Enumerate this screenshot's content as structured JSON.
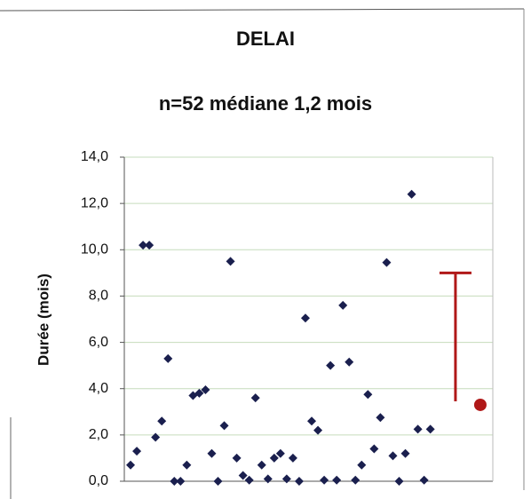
{
  "chart_data": {
    "type": "scatter",
    "title": "DELAI",
    "subtitle": "n=52  médiane 1,2 mois",
    "y_label": "Durée (mois)",
    "color": "#1a1f4e",
    "x": [
      1,
      2,
      3,
      4,
      5,
      6,
      7,
      8,
      9,
      10,
      11,
      12,
      13,
      14,
      15,
      16,
      17,
      18,
      19,
      20,
      21,
      22,
      23,
      24,
      25,
      26,
      27,
      28,
      29,
      30,
      31,
      32,
      33,
      34,
      35,
      36,
      37,
      38,
      39,
      40,
      41,
      42,
      43,
      44,
      45,
      46,
      47,
      48,
      49
    ],
    "values": [
      0.7,
      1.3,
      10.2,
      10.2,
      1.9,
      2.6,
      5.3,
      0,
      0,
      0.7,
      3.7,
      3.8,
      3.95,
      1.2,
      0,
      2.4,
      9.5,
      1.0,
      0.25,
      0.05,
      3.6,
      0.7,
      0.1,
      1.0,
      1.2,
      0.1,
      1.0,
      0,
      7.05,
      2.6,
      2.2,
      0.05,
      5.0,
      0.05,
      7.6,
      5.15,
      0.05,
      0.7,
      3.75,
      1.4,
      2.75,
      9.45,
      1.1,
      0,
      1.2,
      12.4,
      2.25,
      0.05,
      2.25
    ],
    "summary": {
      "x": 57,
      "value": 3.3,
      "error": 5.7,
      "color": "#b01818"
    },
    "xlim": [
      0,
      59
    ],
    "ylim": [
      0,
      14
    ],
    "yticks": [
      {
        "value": 0,
        "label": "0,0"
      },
      {
        "value": 2,
        "label": "2,0"
      },
      {
        "value": 4,
        "label": "4,0"
      },
      {
        "value": 6,
        "label": "6,0"
      },
      {
        "value": 8,
        "label": "8,0"
      },
      {
        "value": 10,
        "label": "10,0"
      },
      {
        "value": 12,
        "label": "12,0"
      },
      {
        "value": 14,
        "label": "14,0"
      }
    ],
    "grid": true,
    "grid_color": "#c6dcbc"
  }
}
